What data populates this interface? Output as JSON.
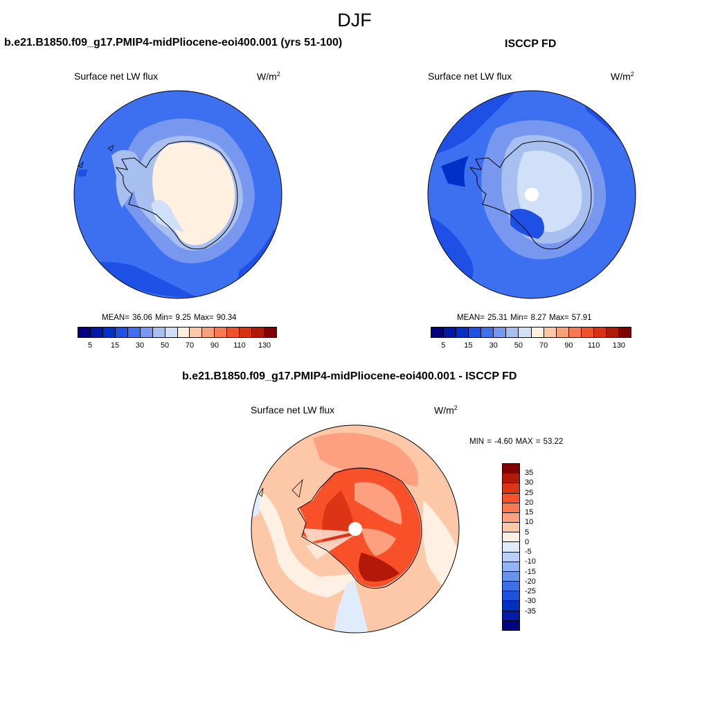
{
  "figure": {
    "title": "DJF"
  },
  "panels": [
    {
      "id": "model",
      "title": "b.e21.B1850.f09_g17.PMIP4-midPliocene-eoi400.001 (yrs 51-100)",
      "variable": "Surface net LW flux",
      "units_base": "W/m",
      "units_exp": "2",
      "stats": "MEAN=  36.06  Min=   9.25  Max=  90.34"
    },
    {
      "id": "obs",
      "title": "ISCCP FD",
      "variable": "Surface net LW flux",
      "units_base": "W/m",
      "units_exp": "2",
      "stats": "MEAN=  25.31  Min=   8.27  Max=  57.91"
    },
    {
      "id": "diff",
      "title": "b.e21.B1850.f09_g17.PMIP4-midPliocene-eoi400.001 - ISCCP FD",
      "variable": "Surface net LW flux",
      "units_base": "W/m",
      "units_exp": "2",
      "stats": "MIN =  -4.60 MAX =  53.22"
    }
  ],
  "colorbar_main": {
    "colors": [
      "#000080",
      "#0018a8",
      "#0030c8",
      "#1e50e6",
      "#3c70f0",
      "#7898f0",
      "#a8c0f0",
      "#d0e0f8",
      "#fff0e0",
      "#fcc8a8",
      "#f8a078",
      "#f87850",
      "#f05028",
      "#d83010",
      "#b01808",
      "#800000"
    ],
    "tick_labels": [
      "5",
      "15",
      "30",
      "50",
      "70",
      "90",
      "110",
      "130"
    ]
  },
  "colorbar_diff": {
    "colors": [
      "#800000",
      "#b41808",
      "#dc3414",
      "#f85028",
      "#fa7850",
      "#fca080",
      "#fdc8a8",
      "#fff0e4",
      "#e0ecfc",
      "#b8d0f8",
      "#90b4f4",
      "#6894ec",
      "#3c70e8",
      "#1e50e0",
      "#0030c0",
      "#001ca8",
      "#000080"
    ],
    "tick_labels": [
      "35",
      "30",
      "25",
      "20",
      "15",
      "10",
      "5",
      "0",
      "-5",
      "-10",
      "-15",
      "-20",
      "-25",
      "-30",
      "-35"
    ]
  },
  "map_legend": {
    "coastline": "#000000",
    "missing_data": "#ffffff"
  }
}
